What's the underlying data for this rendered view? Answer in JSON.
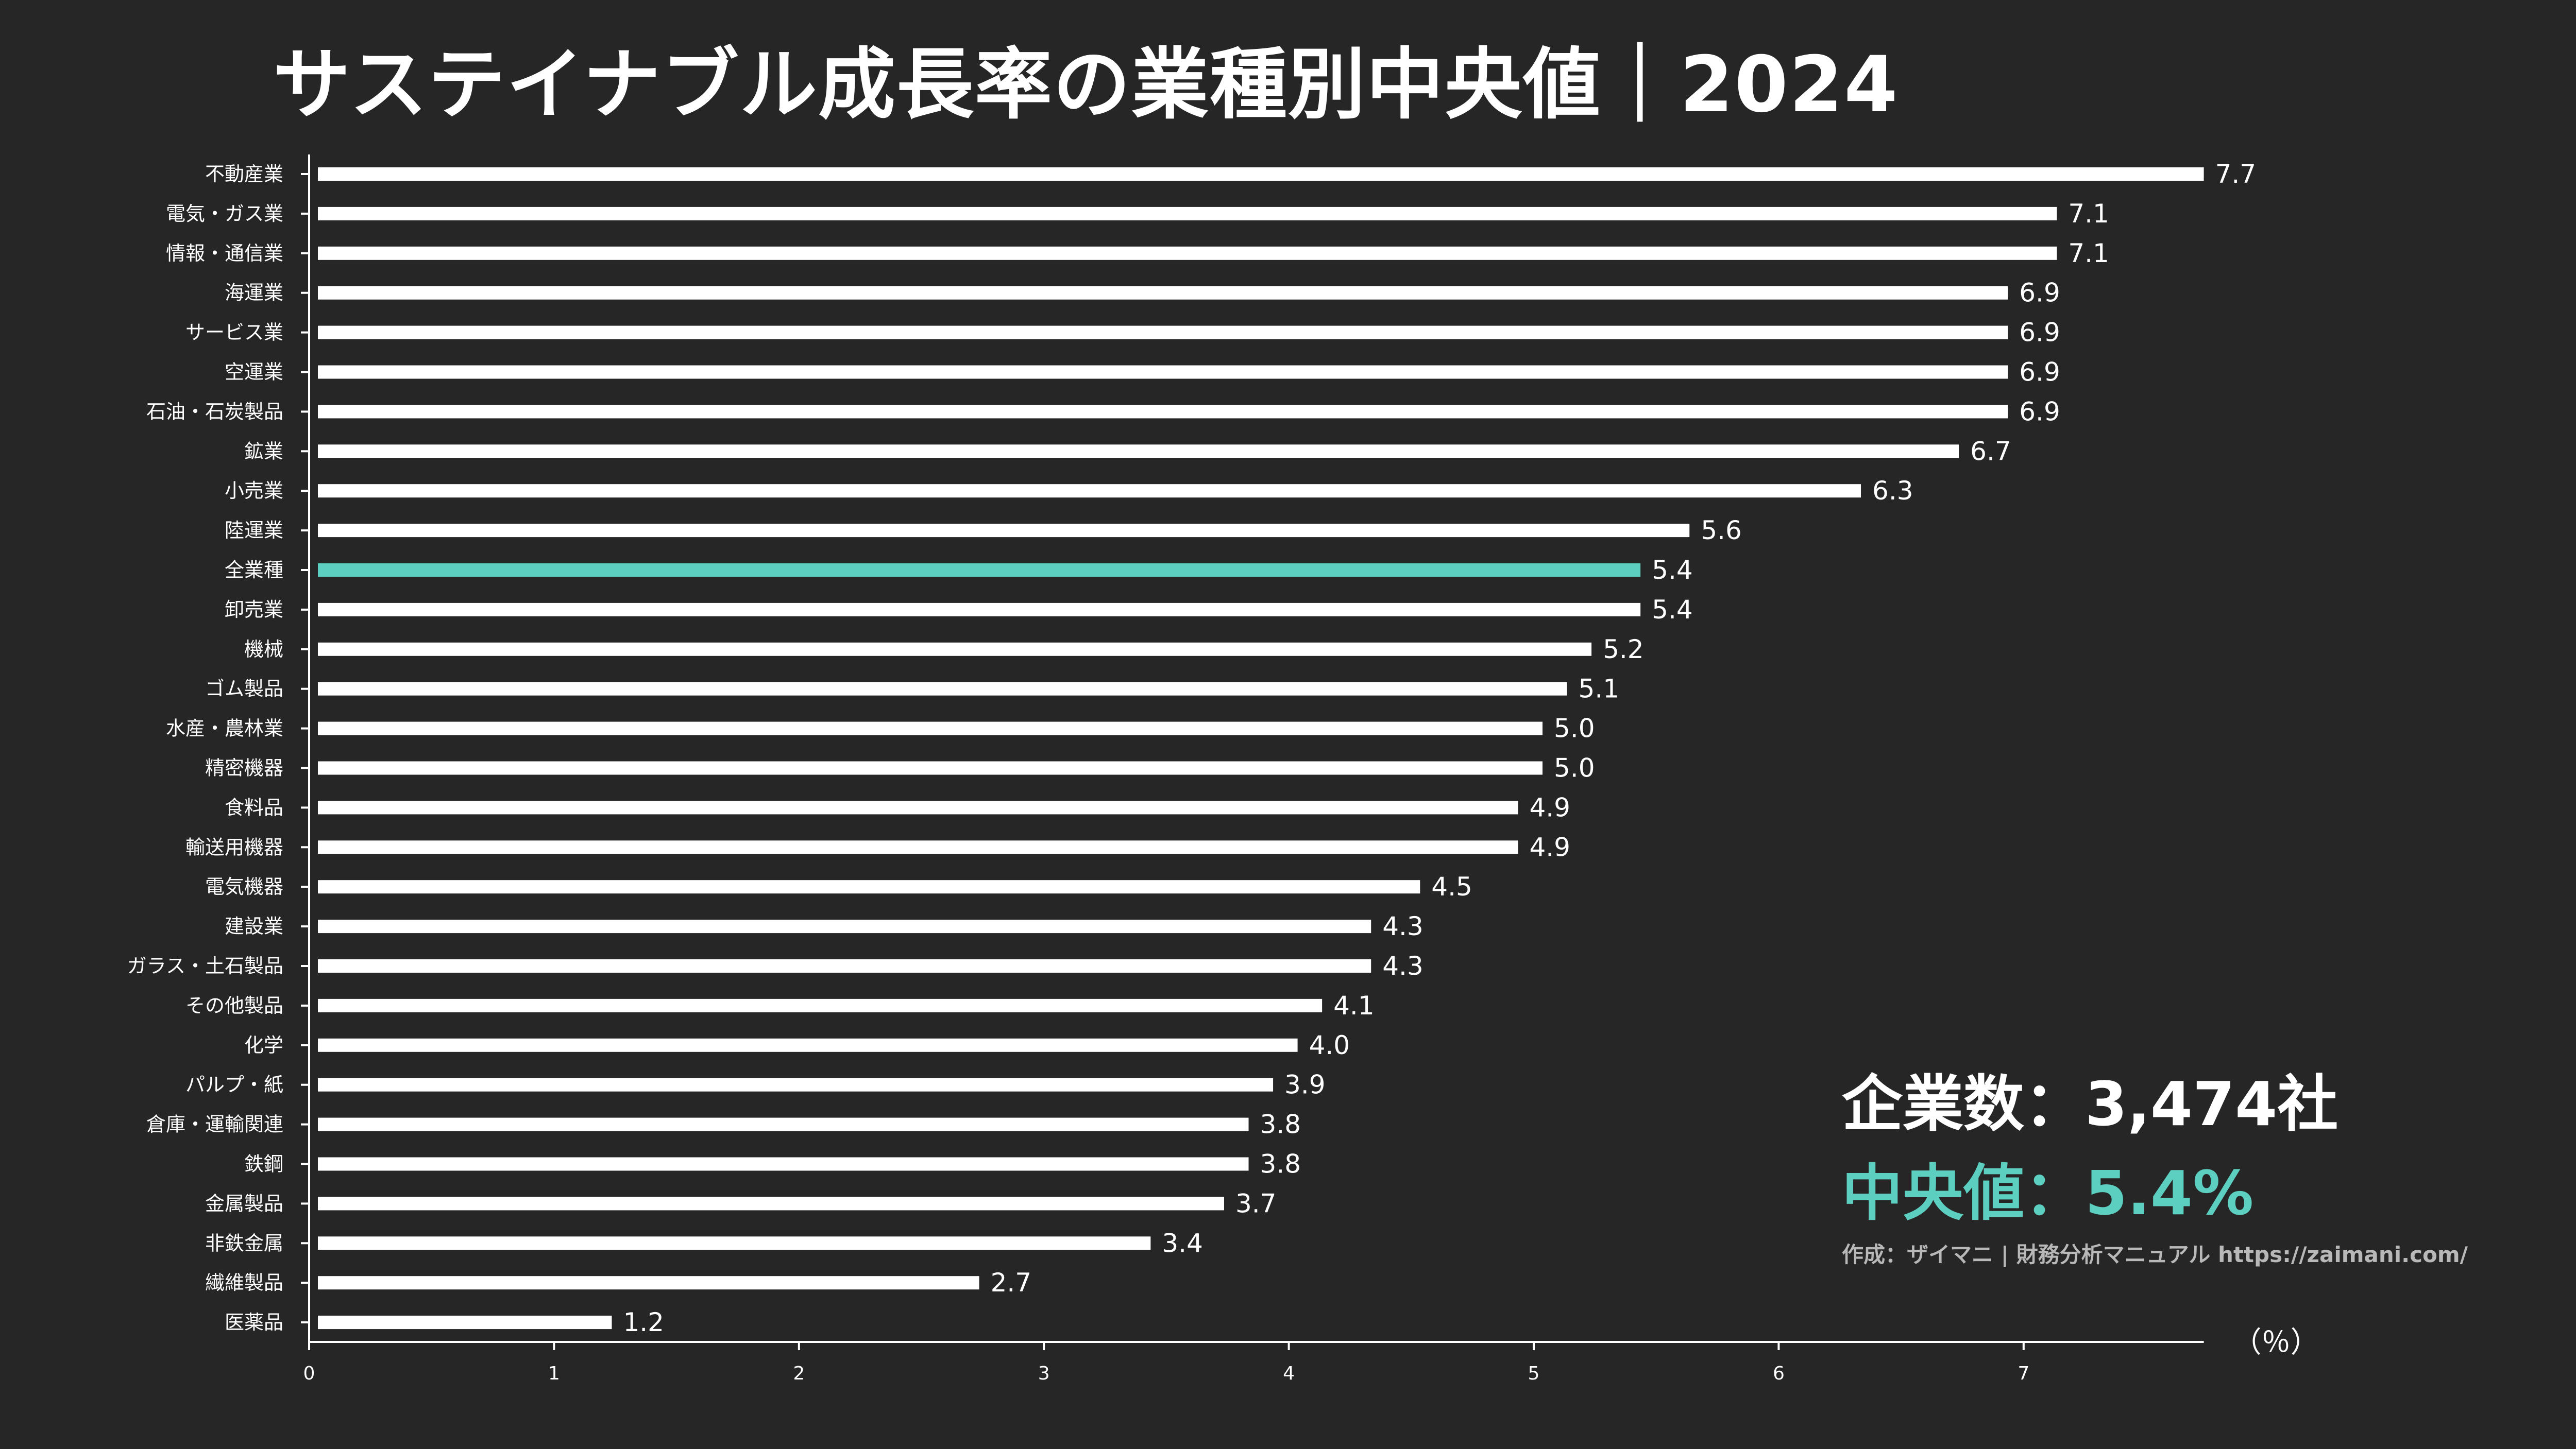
{
  "title": "サステイナブル成長率の業種別中央値｜2024",
  "stats": {
    "companies": "企業数：3,474社",
    "median": "中央値：5.4%",
    "credit": "作成：ザイマニ | 財務分析マニュアル https://zaimani.com/"
  },
  "colors": {
    "background": "#262626",
    "bar": "#ffffff",
    "highlight": "#5ccfc0",
    "text": "#ffffff",
    "credit": "#b8b8b8"
  },
  "chart_data": {
    "type": "bar",
    "orientation": "horizontal",
    "title": "サステイナブル成長率の業種別中央値｜2024",
    "xlabel": "",
    "unit": "（％）",
    "xlim": [
      0,
      7.7
    ],
    "xticks": [
      0,
      1,
      2,
      3,
      4,
      5,
      6,
      7
    ],
    "highlight": "全業種",
    "categories": [
      "不動産業",
      "電気・ガス業",
      "情報・通信業",
      "海運業",
      "サービス業",
      "空運業",
      "石油・石炭製品",
      "鉱業",
      "小売業",
      "陸運業",
      "全業種",
      "卸売業",
      "機械",
      "ゴム製品",
      "水産・農林業",
      "精密機器",
      "食料品",
      "輸送用機器",
      "電気機器",
      "建設業",
      "ガラス・土石製品",
      "その他製品",
      "化学",
      "パルプ・紙",
      "倉庫・運輸関連",
      "鉄鋼",
      "金属製品",
      "非鉄金属",
      "繊維製品",
      "医薬品"
    ],
    "values": [
      7.7,
      7.1,
      7.1,
      6.9,
      6.9,
      6.9,
      6.9,
      6.7,
      6.3,
      5.6,
      5.4,
      5.4,
      5.2,
      5.1,
      5.0,
      5.0,
      4.9,
      4.9,
      4.5,
      4.3,
      4.3,
      4.1,
      4.0,
      3.9,
      3.8,
      3.8,
      3.7,
      3.4,
      2.7,
      1.2
    ],
    "labels": [
      "7.7",
      "7.1",
      "7.1",
      "6.9",
      "6.9",
      "6.9",
      "6.9",
      "6.7",
      "6.3",
      "5.6",
      "5.4",
      "5.4",
      "5.2",
      "5.1",
      "5.0",
      "5.0",
      "4.9",
      "4.9",
      "4.5",
      "4.3",
      "4.3",
      "4.1",
      "4.0",
      "3.9",
      "3.8",
      "3.8",
      "3.7",
      "3.4",
      "2.7",
      "1.2"
    ],
    "grid": false,
    "legend": "none"
  }
}
